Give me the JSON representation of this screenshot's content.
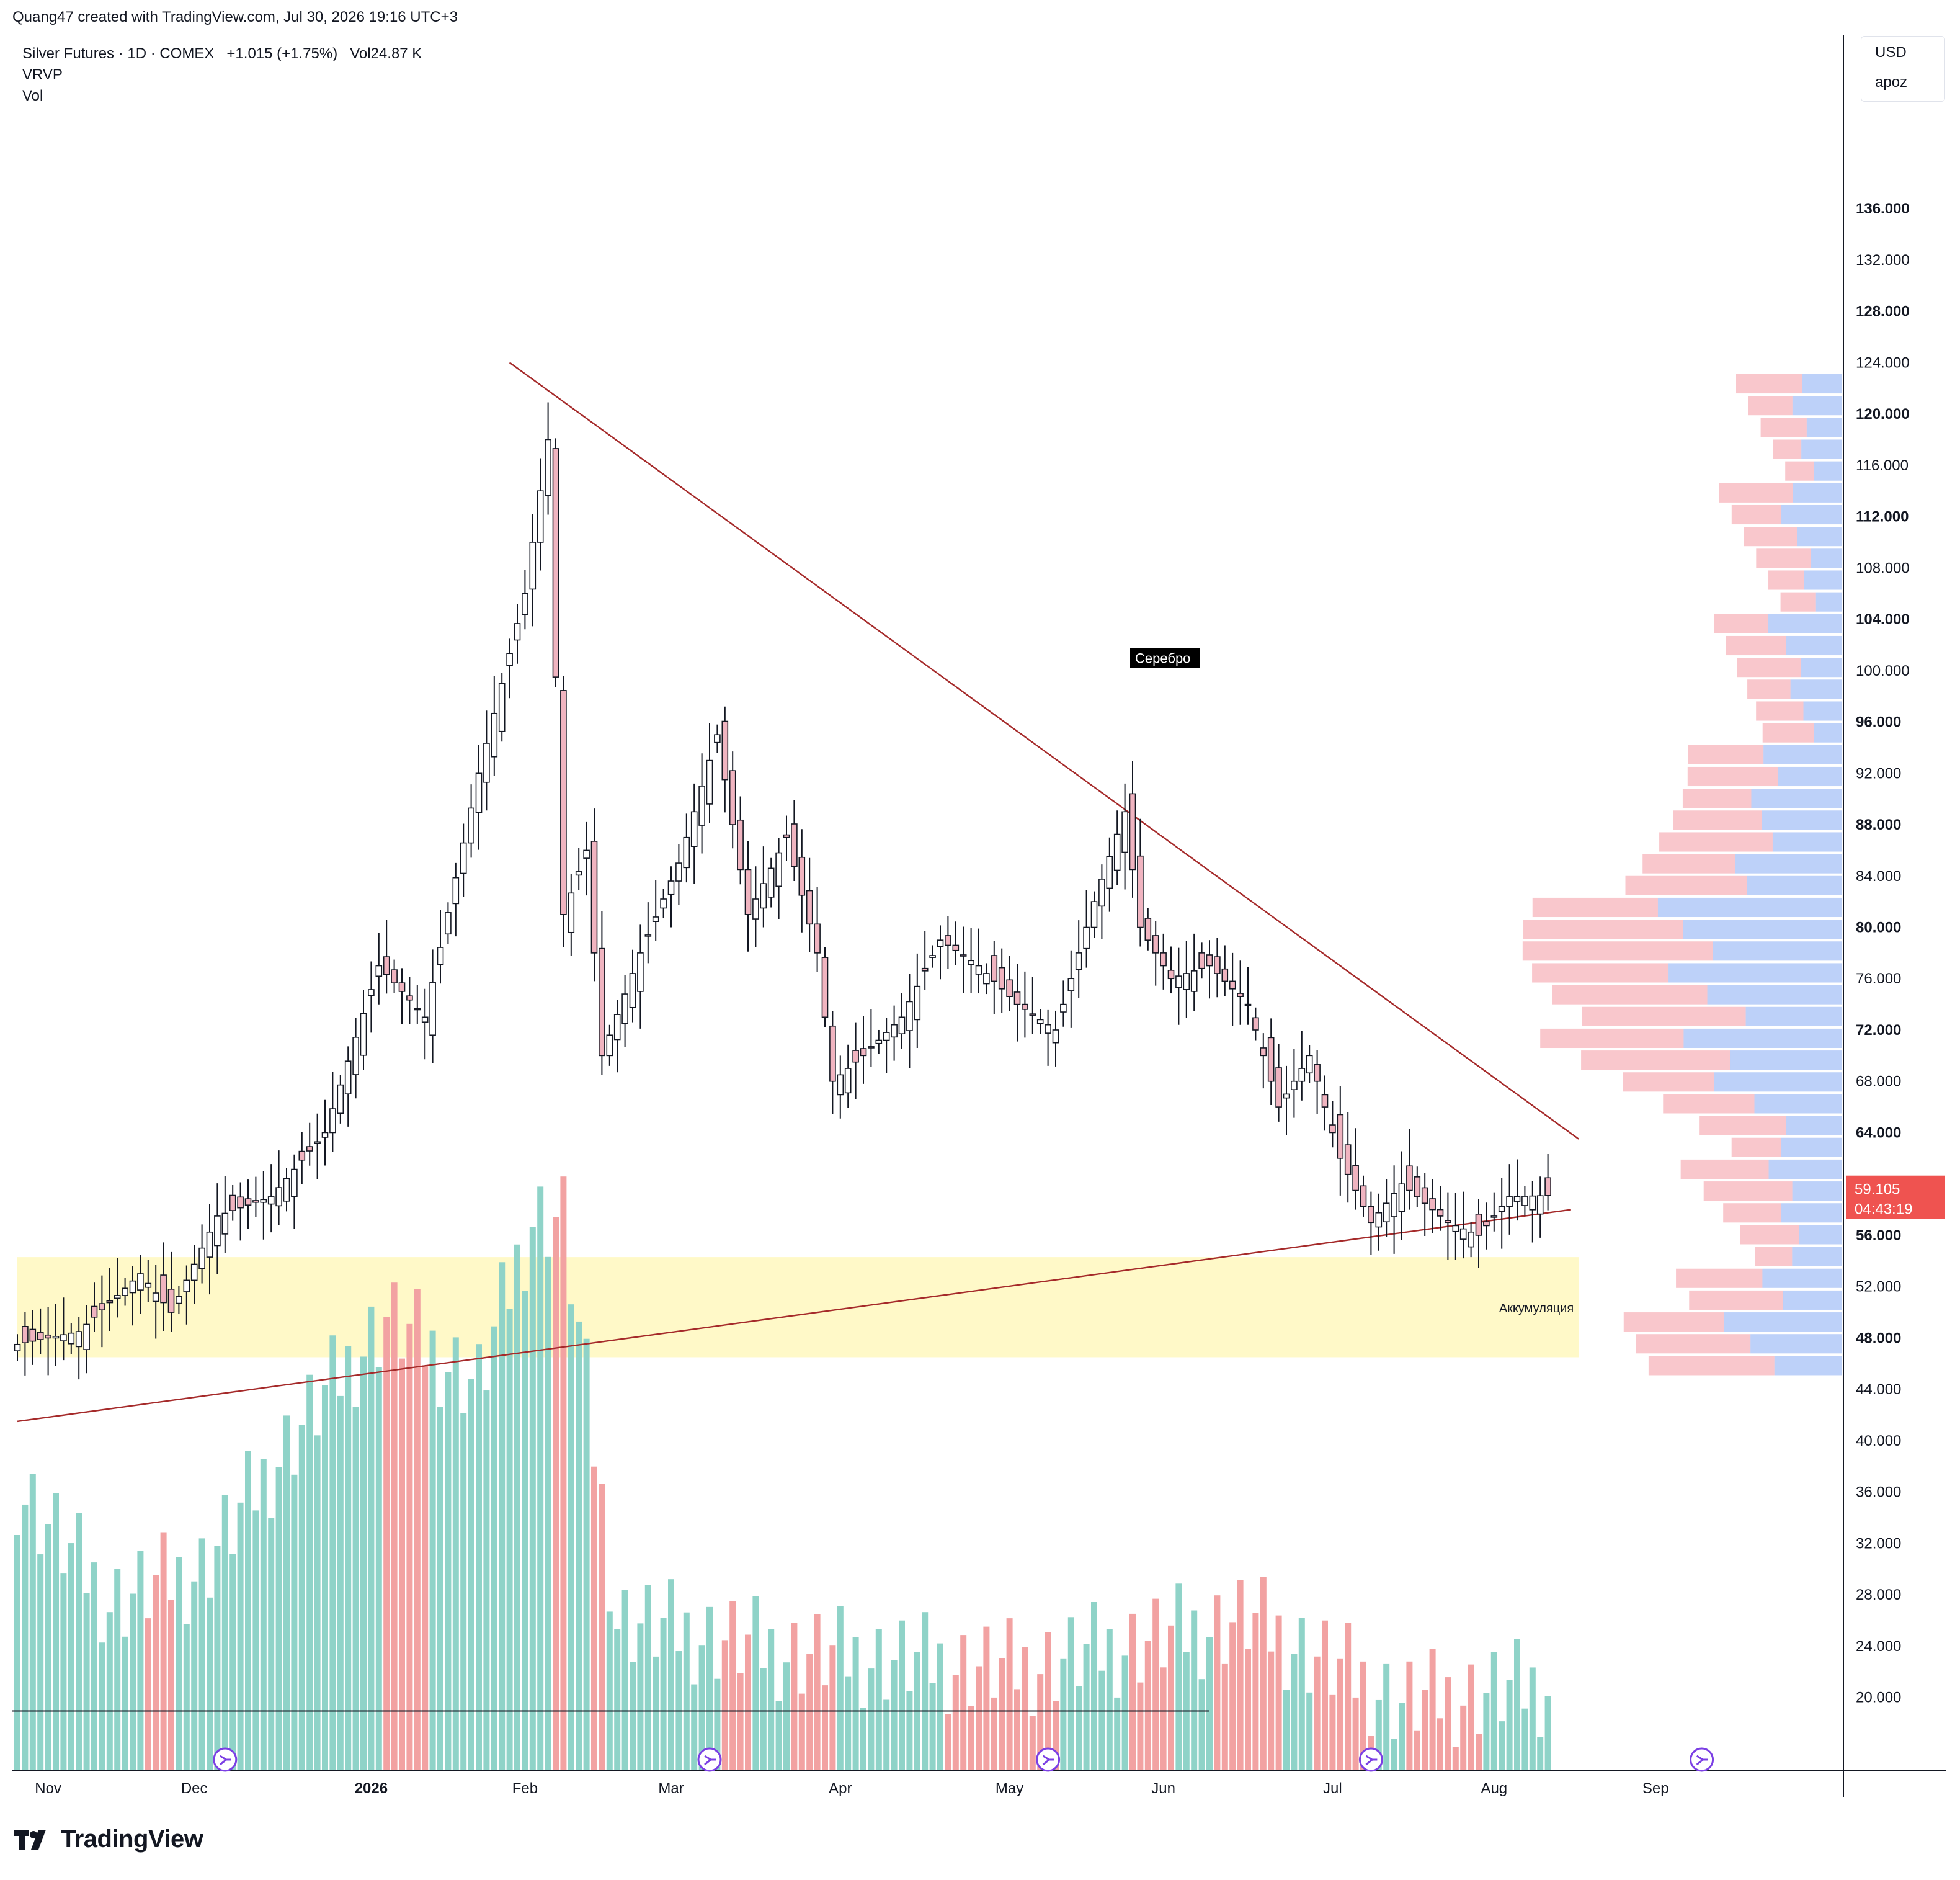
{
  "attribution": "Quang47 created with TradingView.com, Jul 30, 2026 19:16 UTC+3",
  "legend": {
    "symbol": "Silver Futures · 1D · COMEX",
    "change": "+1.015 (+1.75%)",
    "volume": "Vol24.87 K",
    "indicators": [
      "VRVP",
      "Vol"
    ]
  },
  "scale_box": {
    "currency": "USD",
    "unit": "apoz"
  },
  "brand": "TradingView",
  "price_labels": {
    "last_price": "59.105",
    "countdown": "04:43:19"
  },
  "annotations": {
    "silver_label": "Серебро",
    "accumulation_label": "Аккумуляция"
  },
  "colors": {
    "up_body": "#ffffff",
    "down_body": "#f0b4c0",
    "candle_border": "#131722",
    "vol_up": "#8fd3c8",
    "vol_down": "#f2a2a2",
    "trendline": "#a52a2a",
    "zone": "#fff9c8",
    "vrvp_up": "#5b8def",
    "vrvp_down": "#ef5f6d",
    "last_price_bg": "#ef5350"
  },
  "chart_data": {
    "type": "candlestick",
    "title": "Silver Futures · 1D · COMEX",
    "y_axis": {
      "range": [
        16.5,
        143.5
      ],
      "ticks": [
        20,
        24,
        28,
        32,
        36,
        40,
        44,
        48,
        52,
        56,
        60,
        64,
        68,
        72,
        76,
        80,
        84,
        88,
        92,
        96,
        100,
        104,
        108,
        112,
        116,
        120,
        124,
        128,
        132,
        136
      ],
      "bold_ticks": [
        48,
        56,
        64,
        72,
        80,
        88,
        96,
        104,
        112,
        120,
        128,
        136
      ]
    },
    "x_axis": {
      "labels": [
        "Nov",
        "Dec",
        "2026",
        "Feb",
        "Mar",
        "Apr",
        "May",
        "Jun",
        "Jul",
        "Aug",
        "Sep"
      ],
      "label_bar_index": [
        4,
        23,
        46,
        66,
        85,
        107,
        129,
        149,
        171,
        192,
        213
      ]
    },
    "bars": 200,
    "anchors": [
      {
        "i": 0,
        "close": 47.5
      },
      {
        "i": 8,
        "close": 48.5
      },
      {
        "i": 16,
        "close": 53
      },
      {
        "i": 20,
        "close": 50
      },
      {
        "i": 26,
        "close": 57.5
      },
      {
        "i": 33,
        "close": 59
      },
      {
        "i": 40,
        "close": 64
      },
      {
        "i": 47,
        "close": 77
      },
      {
        "i": 53,
        "close": 73
      },
      {
        "i": 60,
        "close": 92
      },
      {
        "i": 66,
        "close": 106
      },
      {
        "i": 69,
        "close": 118
      },
      {
        "i": 71,
        "close": 81
      },
      {
        "i": 74,
        "close": 86
      },
      {
        "i": 76,
        "close": 70
      },
      {
        "i": 81,
        "close": 78
      },
      {
        "i": 86,
        "close": 85
      },
      {
        "i": 91,
        "close": 95
      },
      {
        "i": 95,
        "close": 81
      },
      {
        "i": 100,
        "close": 87
      },
      {
        "i": 104,
        "close": 78
      },
      {
        "i": 106,
        "close": 68
      },
      {
        "i": 110,
        "close": 70
      },
      {
        "i": 115,
        "close": 73
      },
      {
        "i": 120,
        "close": 79
      },
      {
        "i": 125,
        "close": 77
      },
      {
        "i": 130,
        "close": 74
      },
      {
        "i": 135,
        "close": 72
      },
      {
        "i": 140,
        "close": 82
      },
      {
        "i": 144,
        "close": 89
      },
      {
        "i": 146,
        "close": 80
      },
      {
        "i": 150,
        "close": 76
      },
      {
        "i": 155,
        "close": 77
      },
      {
        "i": 160,
        "close": 74
      },
      {
        "i": 164,
        "close": 66
      },
      {
        "i": 168,
        "close": 70
      },
      {
        "i": 172,
        "close": 62
      },
      {
        "i": 176,
        "close": 57
      },
      {
        "i": 180,
        "close": 60
      },
      {
        "i": 186,
        "close": 57
      },
      {
        "i": 190,
        "close": 56
      },
      {
        "i": 194,
        "close": 59
      },
      {
        "i": 199,
        "close": 59.1
      }
    ],
    "volume_anchors": [
      {
        "i": 0,
        "v": 32
      },
      {
        "i": 12,
        "v": 25
      },
      {
        "i": 24,
        "v": 27
      },
      {
        "i": 36,
        "v": 35
      },
      {
        "i": 48,
        "v": 42
      },
      {
        "i": 60,
        "v": 38
      },
      {
        "i": 67,
        "v": 48
      },
      {
        "i": 71,
        "v": 48
      },
      {
        "i": 78,
        "v": 24
      },
      {
        "i": 100,
        "v": 22
      },
      {
        "i": 130,
        "v": 21
      },
      {
        "i": 160,
        "v": 24
      },
      {
        "i": 180,
        "v": 19
      },
      {
        "i": 199,
        "v": 20
      }
    ],
    "series": [
      {
        "name": "Vol",
        "type": "volume"
      },
      {
        "name": "VRVP",
        "type": "volume_profile"
      }
    ],
    "trendlines": [
      {
        "from": {
          "i": 64,
          "price": 124
        },
        "to": {
          "i": 203,
          "price": 63.5
        }
      },
      {
        "from": {
          "i": 0,
          "price": 41.5
        },
        "to": {
          "i": 202,
          "price": 58
        }
      }
    ],
    "zones": [
      {
        "label": "Аккумуляция",
        "price_low": 46.5,
        "price_high": 54.3,
        "from_i": 0,
        "to_i": 203
      }
    ],
    "event_markers_bar_index": [
      27,
      90,
      134,
      176,
      219
    ],
    "volume_average_level": 18.5,
    "last_price": 59.105
  }
}
